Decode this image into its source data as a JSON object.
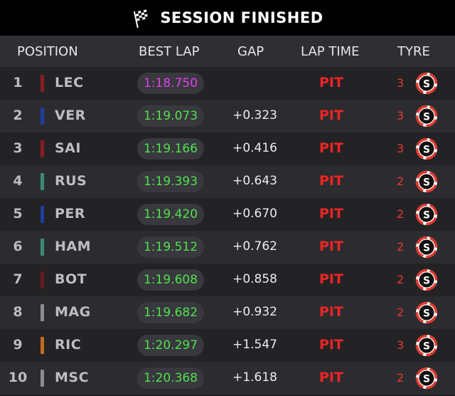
{
  "header": {
    "title": "SESSION FINISHED",
    "icon": "checkered-flag-icon"
  },
  "columns": {
    "position": "POSITION",
    "best_lap": "BEST LAP",
    "gap": "GAP",
    "lap_time": "LAP TIME",
    "tyre": "TYRE"
  },
  "colors": {
    "fastest_lap": "#e040e8",
    "lap": "#52e04e",
    "pit": "#ee2424",
    "tyre_soft": "#e23a30"
  },
  "rows": [
    {
      "pos": "1",
      "code": "LEC",
      "team_color": "#8a1c22",
      "best_lap": "1:18.750",
      "fastest": true,
      "gap": "",
      "lap_time": "PIT",
      "tyre_age": "3",
      "tyre": "S"
    },
    {
      "pos": "2",
      "code": "VER",
      "team_color": "#1e3f9e",
      "best_lap": "1:19.073",
      "fastest": false,
      "gap": "+0.323",
      "lap_time": "PIT",
      "tyre_age": "3",
      "tyre": "S"
    },
    {
      "pos": "3",
      "code": "SAI",
      "team_color": "#8a1c22",
      "best_lap": "1:19.166",
      "fastest": false,
      "gap": "+0.416",
      "lap_time": "PIT",
      "tyre_age": "3",
      "tyre": "S"
    },
    {
      "pos": "4",
      "code": "RUS",
      "team_color": "#3c8a78",
      "best_lap": "1:19.393",
      "fastest": false,
      "gap": "+0.643",
      "lap_time": "PIT",
      "tyre_age": "2",
      "tyre": "S"
    },
    {
      "pos": "5",
      "code": "PER",
      "team_color": "#1e3f9e",
      "best_lap": "1:19.420",
      "fastest": false,
      "gap": "+0.670",
      "lap_time": "PIT",
      "tyre_age": "2",
      "tyre": "S"
    },
    {
      "pos": "6",
      "code": "HAM",
      "team_color": "#3c8a78",
      "best_lap": "1:19.512",
      "fastest": false,
      "gap": "+0.762",
      "lap_time": "PIT",
      "tyre_age": "2",
      "tyre": "S"
    },
    {
      "pos": "7",
      "code": "BOT",
      "team_color": "#6a1a22",
      "best_lap": "1:19.608",
      "fastest": false,
      "gap": "+0.858",
      "lap_time": "PIT",
      "tyre_age": "2",
      "tyre": "S"
    },
    {
      "pos": "8",
      "code": "MAG",
      "team_color": "#8c8c90",
      "best_lap": "1:19.682",
      "fastest": false,
      "gap": "+0.932",
      "lap_time": "PIT",
      "tyre_age": "2",
      "tyre": "S"
    },
    {
      "pos": "9",
      "code": "RIC",
      "team_color": "#c26a1e",
      "best_lap": "1:20.297",
      "fastest": false,
      "gap": "+1.547",
      "lap_time": "PIT",
      "tyre_age": "3",
      "tyre": "S"
    },
    {
      "pos": "10",
      "code": "MSC",
      "team_color": "#8c8c90",
      "best_lap": "1:20.368",
      "fastest": false,
      "gap": "+1.618",
      "lap_time": "PIT",
      "tyre_age": "2",
      "tyre": "S"
    }
  ]
}
